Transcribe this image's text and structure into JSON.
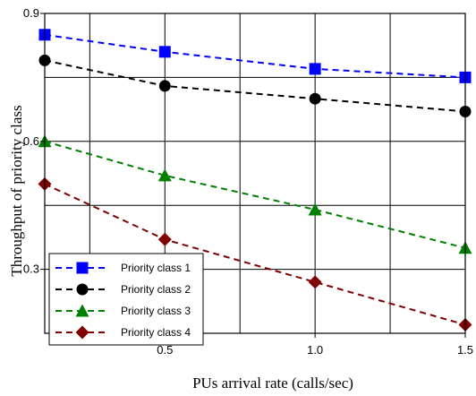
{
  "chart_data": {
    "type": "line",
    "title": "",
    "xlabel": "PUs arrival rate (calls/sec)",
    "ylabel": "Throughput of priority class",
    "xlim": [
      0.1,
      1.5
    ],
    "ylim": [
      0.15,
      0.9
    ],
    "xticks": [
      0.5,
      1.0,
      1.5
    ],
    "xtick_labels": [
      "0.5",
      "1.0",
      "1.5"
    ],
    "yticks": [
      0.3,
      0.6,
      0.9
    ],
    "ytick_labels": [
      "0.3",
      "0.6",
      "0.9"
    ],
    "x_grid": [
      0.25,
      0.5,
      0.75,
      1.0,
      1.25,
      1.5
    ],
    "y_grid": [
      0.3,
      0.45,
      0.6,
      0.75,
      0.9
    ],
    "grid": true,
    "legend_position": "bottom-left",
    "x": [
      0.1,
      0.5,
      1.0,
      1.5
    ],
    "series": [
      {
        "name": "Priority class 1",
        "color": "#0000ff",
        "marker": "square",
        "values": [
          0.85,
          0.81,
          0.77,
          0.75
        ]
      },
      {
        "name": "Priority class 2",
        "color": "#000000",
        "marker": "circle",
        "values": [
          0.79,
          0.73,
          0.7,
          0.67
        ]
      },
      {
        "name": "Priority class 3",
        "color": "#008000",
        "marker": "triangle",
        "values": [
          0.6,
          0.52,
          0.44,
          0.35
        ]
      },
      {
        "name": "Priority class 4",
        "color": "#800000",
        "marker": "diamond",
        "values": [
          0.5,
          0.37,
          0.27,
          0.17
        ]
      }
    ]
  }
}
